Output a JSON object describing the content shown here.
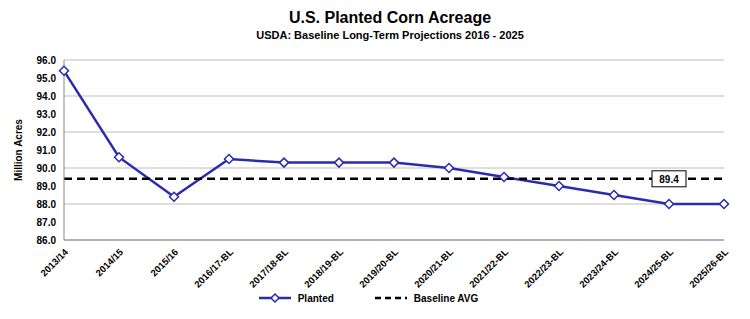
{
  "chart_data": {
    "type": "line",
    "title": "U.S. Planted Corn Acreage",
    "subtitle": "USDA: Baseline Long-Term Projections 2016 - 2025",
    "y_label": "Million Acres",
    "categories": [
      "2013/14",
      "2014/15",
      "2015/16",
      "2016/17-BL",
      "2017/18-BL",
      "2018/19-BL",
      "2019/20-BL",
      "2020/21-BL",
      "2021/22-BL",
      "2022/23-BL",
      "2023/24-BL",
      "2024/25-BL",
      "2025/26-BL"
    ],
    "series": [
      {
        "name": "Planted",
        "color": "#2b2bb0",
        "marker": "diamond",
        "values": [
          95.4,
          90.6,
          88.4,
          90.5,
          90.3,
          90.3,
          90.3,
          90.0,
          89.5,
          89.0,
          88.5,
          88.0,
          88.0
        ]
      },
      {
        "name": "Baseline AVG",
        "color": "#000000",
        "line_style": "dashed",
        "values": [
          89.4,
          89.4,
          89.4,
          89.4,
          89.4,
          89.4,
          89.4,
          89.4,
          89.4,
          89.4,
          89.4,
          89.4,
          89.4
        ]
      }
    ],
    "annotations": [
      {
        "x": "2024/25-BL",
        "y": 89.4,
        "text": "89.4"
      }
    ],
    "ylim": [
      86,
      96
    ],
    "yticks": [
      {
        "value": 86,
        "label": "86.0"
      },
      {
        "value": 87,
        "label": "87.0"
      },
      {
        "value": 88,
        "label": "88.0"
      },
      {
        "value": 89,
        "label": "89.0"
      },
      {
        "value": 90,
        "label": "90.0"
      },
      {
        "value": 91,
        "label": "91.0"
      },
      {
        "value": 92,
        "label": "92.0"
      },
      {
        "value": 93,
        "label": "93.0"
      },
      {
        "value": 94,
        "label": "94.0"
      },
      {
        "value": 95,
        "label": "95.0"
      },
      {
        "value": 96,
        "label": "96.0"
      }
    ],
    "grid": true,
    "legend": "bottom"
  }
}
